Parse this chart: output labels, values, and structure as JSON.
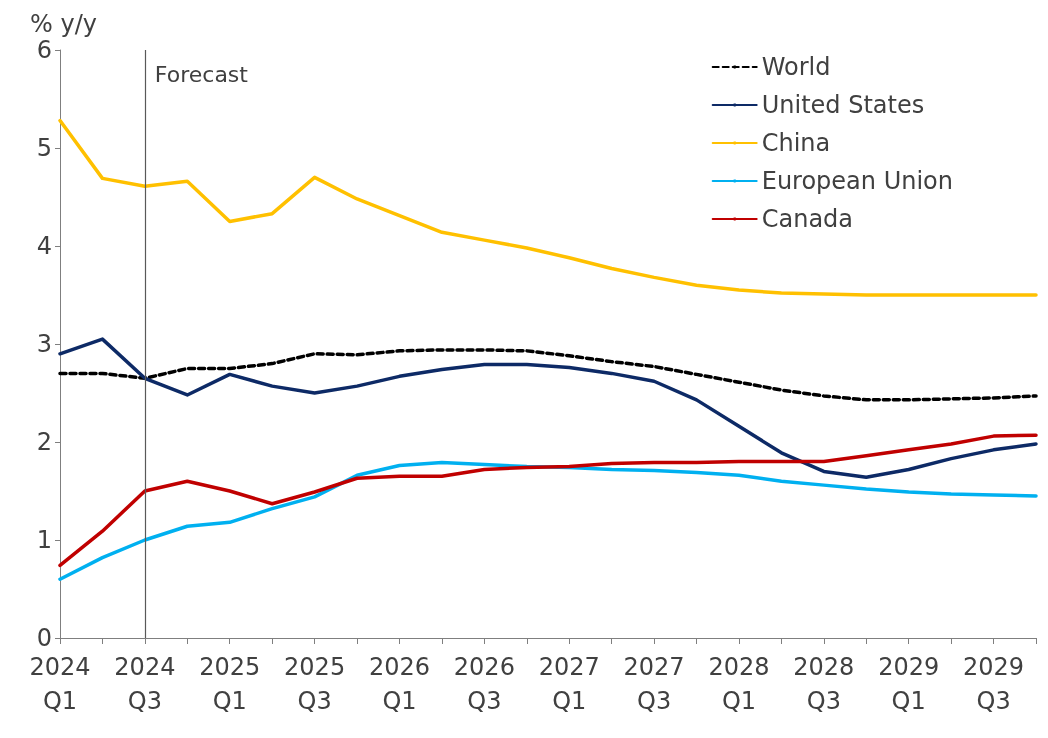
{
  "chart_data": {
    "type": "line",
    "ylabel": "% y/y",
    "categories": [
      "2024\nQ1",
      null,
      "2024\nQ3",
      null,
      "2025\nQ1",
      null,
      "2025\nQ3",
      null,
      "2026\nQ1",
      null,
      "2026\nQ3",
      null,
      "2027\nQ1",
      null,
      "2027\nQ3",
      null,
      "2028\nQ1",
      null,
      "2028\nQ3",
      null,
      "2029\nQ1",
      null,
      "2029\nQ3",
      null
    ],
    "series": [
      {
        "name": "World",
        "color": "#000000",
        "line_style": "dashed",
        "values": [
          2.7,
          2.7,
          2.65,
          2.75,
          2.75,
          2.8,
          2.9,
          2.89,
          2.93,
          2.94,
          2.94,
          2.93,
          2.88,
          2.82,
          2.77,
          2.69,
          2.61,
          2.53,
          2.47,
          2.43,
          2.43,
          2.44,
          2.45,
          2.47
        ]
      },
      {
        "name": "United States",
        "color": "#0d2a66",
        "values": [
          2.9,
          3.05,
          2.65,
          2.48,
          2.69,
          2.57,
          2.5,
          2.57,
          2.67,
          2.74,
          2.79,
          2.79,
          2.76,
          2.7,
          2.62,
          2.43,
          2.16,
          1.89,
          1.7,
          1.64,
          1.72,
          1.83,
          1.92,
          1.98
        ]
      },
      {
        "name": "China",
        "color": "#ffc000",
        "values": [
          5.28,
          4.69,
          4.61,
          4.66,
          4.25,
          4.33,
          4.7,
          4.48,
          4.31,
          4.14,
          4.06,
          3.98,
          3.88,
          3.77,
          3.68,
          3.6,
          3.55,
          3.52,
          3.51,
          3.5,
          3.5,
          3.5,
          3.5,
          3.5
        ]
      },
      {
        "name": "European Union",
        "color": "#00b0f0",
        "values": [
          0.6,
          0.82,
          1.0,
          1.14,
          1.18,
          1.32,
          1.44,
          1.66,
          1.76,
          1.79,
          1.77,
          1.75,
          1.74,
          1.72,
          1.71,
          1.69,
          1.66,
          1.6,
          1.56,
          1.52,
          1.49,
          1.47,
          1.46,
          1.45
        ]
      },
      {
        "name": "Canada",
        "color": "#c00000",
        "values": [
          0.74,
          1.09,
          1.5,
          1.6,
          1.5,
          1.37,
          1.49,
          1.63,
          1.65,
          1.65,
          1.72,
          1.74,
          1.75,
          1.78,
          1.79,
          1.79,
          1.8,
          1.8,
          1.8,
          1.86,
          1.92,
          1.98,
          2.06,
          2.07
        ]
      }
    ],
    "ylim": [
      0,
      6
    ],
    "yticks": [
      0,
      1,
      2,
      3,
      4,
      5,
      6
    ],
    "grid": false,
    "legend": "top right",
    "marker": "none",
    "line_style": "solid",
    "ref_lines": [
      {
        "axis": "x",
        "value": "2024\nQ3",
        "label": "Forecast",
        "color": "#595959"
      }
    ]
  }
}
